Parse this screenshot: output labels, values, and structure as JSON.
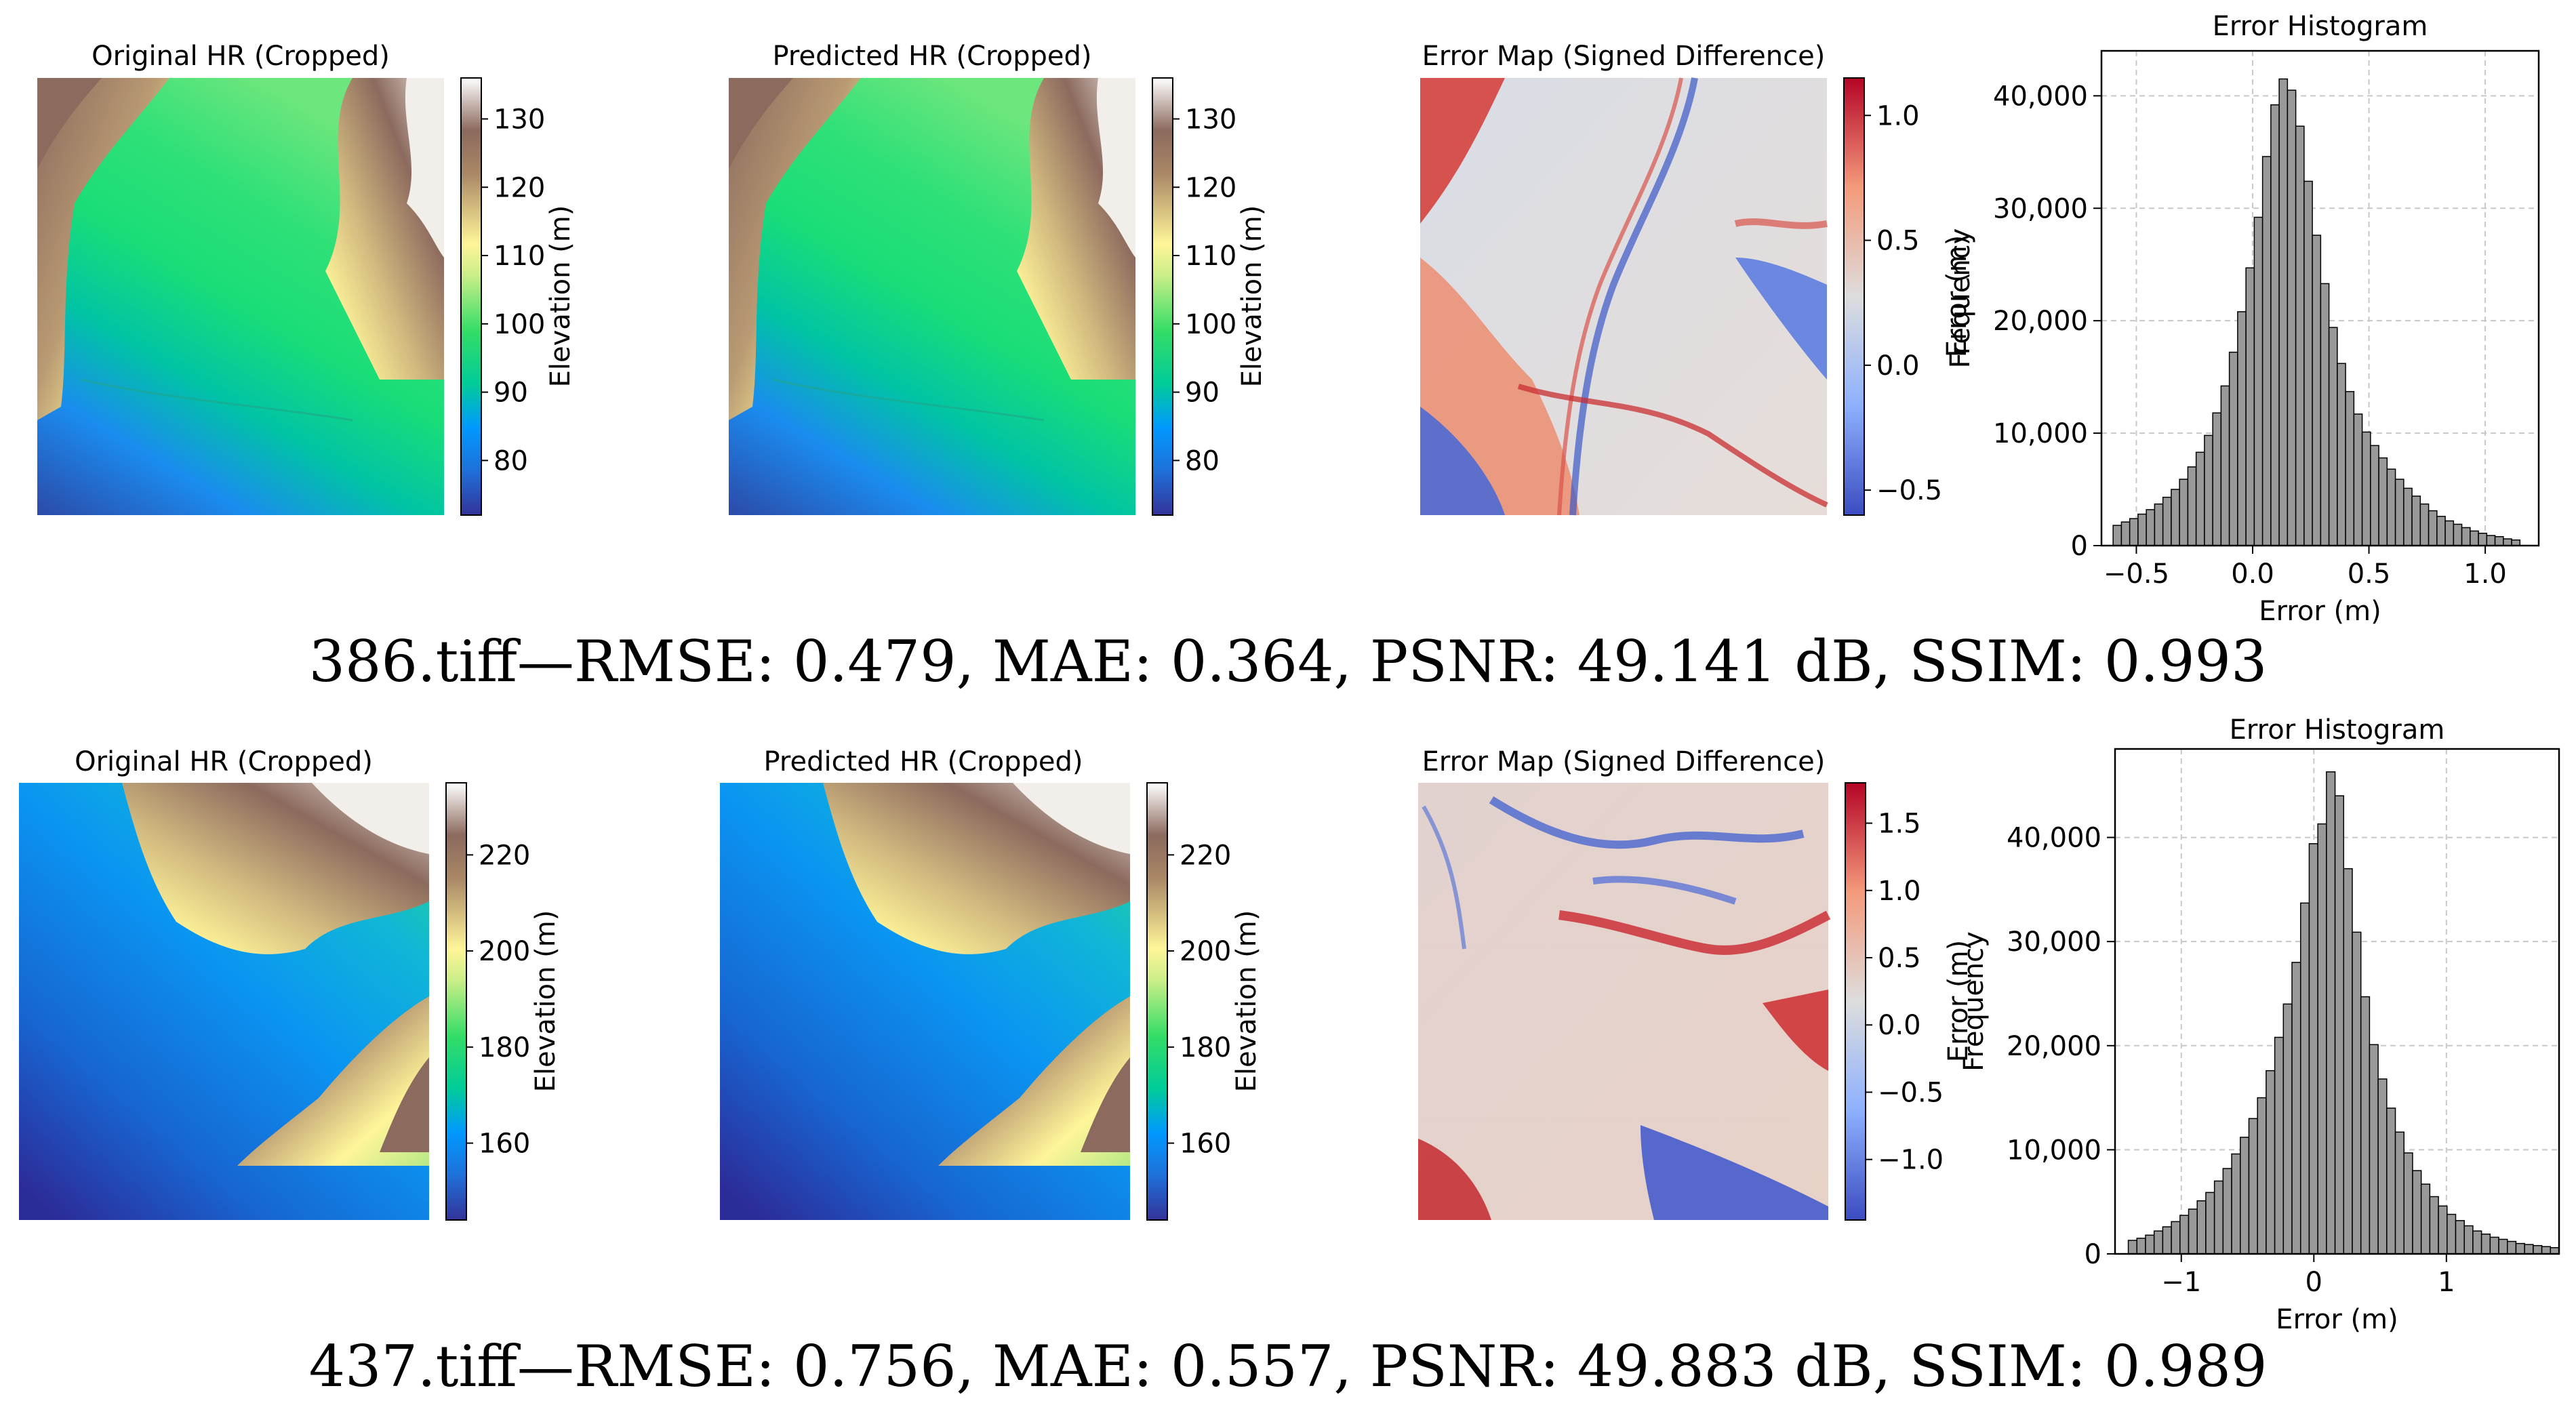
{
  "rows": [
    {
      "file": "386.tiff",
      "caption": "386.tiff—RMSE: 0.479, MAE: 0.364, PSNR: 49.141 dB, SSIM: 0.993",
      "panels": {
        "original_title": "Original HR (Cropped)",
        "predicted_title": "Predicted HR (Cropped)",
        "error_title": "Error Map (Signed Difference)",
        "elevation_label": "Elevation (m)",
        "error_label": "Error (m)"
      },
      "elevation_colorbar": {
        "min": 72,
        "max": 136,
        "ticks": [
          80,
          90,
          100,
          110,
          120,
          130
        ],
        "colormap": "terrain"
      },
      "error_colorbar": {
        "min": -0.6,
        "max": 1.15,
        "ticks": [
          -0.5,
          0.0,
          0.5,
          1.0
        ],
        "tick_labels": [
          "−0.5",
          "0.0",
          "0.5",
          "1.0"
        ],
        "colormap": "coolwarm"
      }
    },
    {
      "file": "437.tiff",
      "caption": "437.tiff—RMSE: 0.756, MAE: 0.557, PSNR: 49.883 dB, SSIM: 0.989",
      "panels": {
        "original_title": "Original HR (Cropped)",
        "predicted_title": "Predicted HR (Cropped)",
        "error_title": "Error Map (Signed Difference)",
        "elevation_label": "Elevation (m)",
        "error_label": "Error (m)"
      },
      "elevation_colorbar": {
        "min": 144,
        "max": 235,
        "ticks": [
          160,
          180,
          200,
          220
        ],
        "colormap": "terrain"
      },
      "error_colorbar": {
        "min": -1.45,
        "max": 1.8,
        "ticks": [
          -1.0,
          -0.5,
          0.0,
          0.5,
          1.0,
          1.5
        ],
        "tick_labels": [
          "−1.0",
          "−0.5",
          "0.0",
          "0.5",
          "1.0",
          "1.5"
        ],
        "colormap": "coolwarm"
      }
    }
  ],
  "chart_data": [
    {
      "type": "bar",
      "title": "Error Histogram",
      "xlabel": "Error (m)",
      "ylabel": "Frequency",
      "xlim": [
        -0.65,
        1.23
      ],
      "ylim": [
        0,
        44000
      ],
      "xticks": [
        -0.5,
        0.0,
        0.5,
        1.0
      ],
      "xtick_labels": [
        "−0.5",
        "0.0",
        "0.5",
        "1.0"
      ],
      "yticks": [
        0,
        10000,
        20000,
        30000,
        40000
      ],
      "ytick_labels": [
        "0",
        "10,000",
        "20,000",
        "30,000",
        "40,000"
      ],
      "grid": true,
      "bar_color": "#999999",
      "bin_start": -0.6,
      "bin_width": 0.0357,
      "values": [
        1800,
        2100,
        2400,
        2800,
        3200,
        3700,
        4300,
        5000,
        5900,
        7000,
        8300,
        9800,
        11800,
        14200,
        17200,
        20800,
        24700,
        29200,
        34600,
        39200,
        41500,
        40500,
        37300,
        32400,
        27600,
        23300,
        19400,
        16200,
        13700,
        11700,
        10100,
        8900,
        7800,
        6800,
        5900,
        5100,
        4400,
        3700,
        3100,
        2600,
        2200,
        1900,
        1600,
        1300,
        1100,
        900,
        800,
        600,
        500
      ]
    },
    {
      "type": "bar",
      "title": "Error Histogram",
      "xlabel": "Error (m)",
      "ylabel": "Frequency",
      "xlim": [
        -1.5,
        1.85
      ],
      "ylim": [
        0,
        48500
      ],
      "xticks": [
        -1,
        0,
        1
      ],
      "xtick_labels": [
        "−1",
        "0",
        "1"
      ],
      "yticks": [
        0,
        10000,
        20000,
        30000,
        40000
      ],
      "ytick_labels": [
        "0",
        "10,000",
        "20,000",
        "30,000",
        "40,000"
      ],
      "grid": true,
      "bar_color": "#999999",
      "bin_start": -1.4,
      "bin_width": 0.065,
      "values": [
        1300,
        1500,
        1800,
        2200,
        2600,
        3100,
        3700,
        4300,
        5100,
        5900,
        7000,
        8200,
        9600,
        11200,
        13000,
        15000,
        17600,
        20800,
        24000,
        28000,
        33700,
        39400,
        41300,
        46300,
        44000,
        37000,
        30900,
        24700,
        20100,
        16800,
        14000,
        11700,
        9700,
        8000,
        6700,
        5500,
        4600,
        3800,
        3200,
        2700,
        2200,
        1900,
        1600,
        1400,
        1200,
        1000,
        900,
        800,
        700,
        600
      ]
    }
  ]
}
